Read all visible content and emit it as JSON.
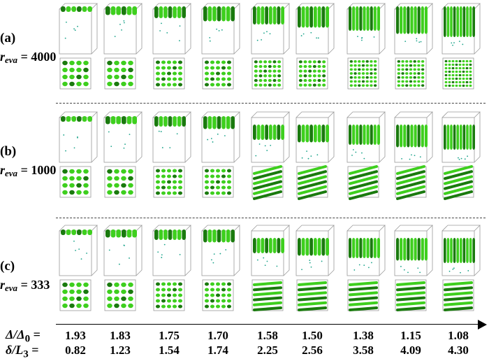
{
  "rows": [
    {
      "letter": "(a)",
      "r_label": "r",
      "r_sub": "eva",
      "r_value": "= 4000"
    },
    {
      "letter": "(b)",
      "r_label": "r",
      "r_sub": "eva",
      "r_value": "= 1000"
    },
    {
      "letter": "(c)",
      "r_label": "r",
      "r_sub": "eva",
      "r_value": "= 333"
    }
  ],
  "axis": {
    "delta_label": "Δ/Δ",
    "delta_sub": "0",
    "delta_eq": " =",
    "thick_label": "δ/L",
    "thick_sub": "3",
    "thick_eq": " ="
  },
  "delta_values": [
    "1.93",
    "1.83",
    "1.75",
    "1.70",
    "1.58",
    "1.50",
    "1.38",
    "1.15",
    "1.08"
  ],
  "thickness_values": [
    "0.82",
    "1.23",
    "1.54",
    "1.74",
    "2.25",
    "2.56",
    "3.58",
    "4.09",
    "4.30"
  ],
  "colors": {
    "film": "#3ecf1e",
    "film_dark": "#1a7a0e",
    "box": "#9a9a9a",
    "dot": "#1aa38a"
  }
}
